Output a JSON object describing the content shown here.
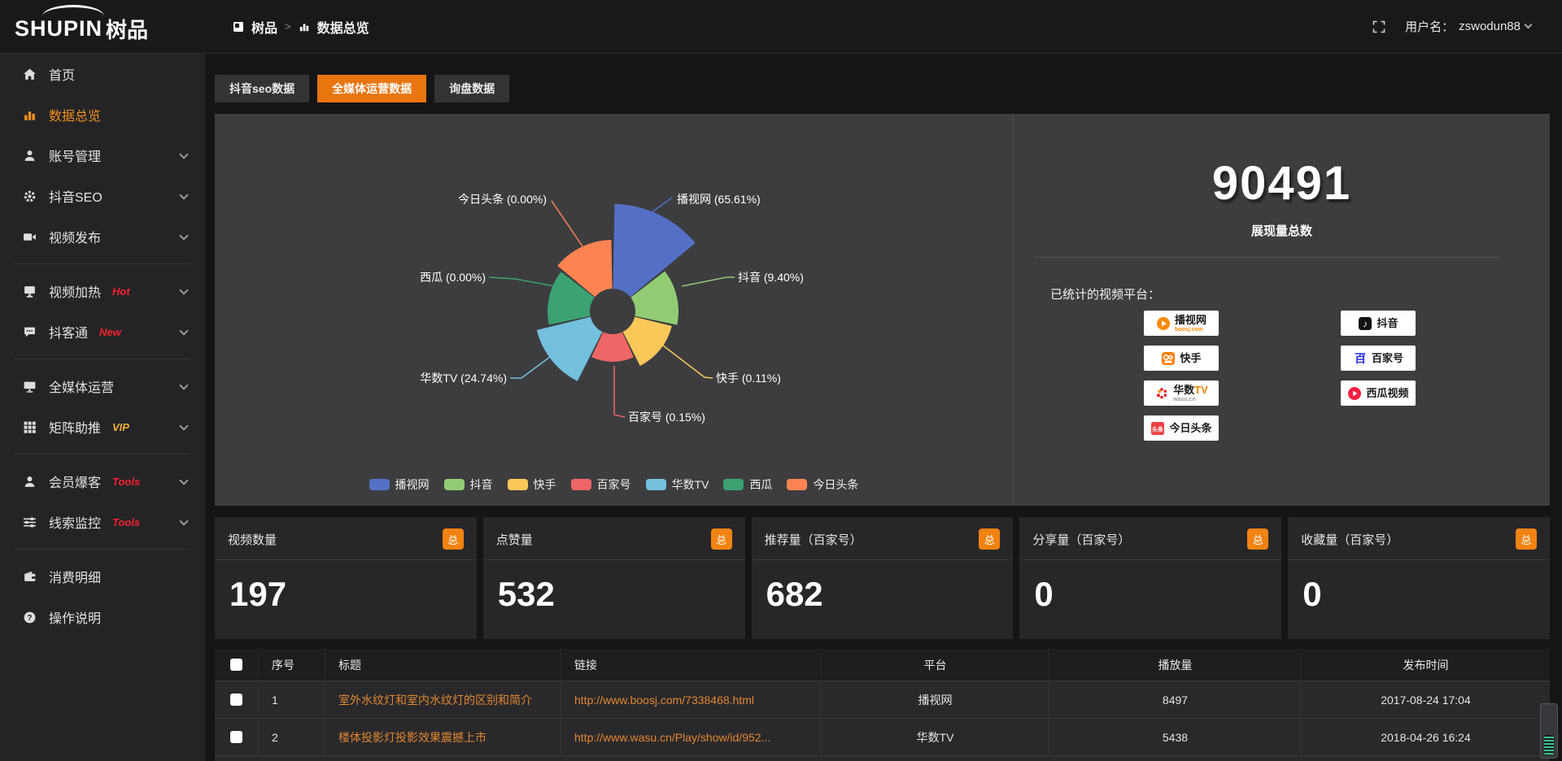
{
  "topbar": {
    "logo_text": "SHUPIN",
    "logo_suffix": "树品",
    "breadcrumb": [
      {
        "label": "树品"
      },
      {
        "label": "数据总览"
      }
    ],
    "username_prefix": "用户名：",
    "username": "zswodun88"
  },
  "sidebar": {
    "items": [
      {
        "label": "首页",
        "icon": "home",
        "badge": "",
        "badge_color": "",
        "chevron": false,
        "active": false,
        "divider_after": false
      },
      {
        "label": "数据总览",
        "icon": "bars",
        "badge": "",
        "badge_color": "",
        "chevron": false,
        "active": true,
        "divider_after": false
      },
      {
        "label": "账号管理",
        "icon": "user",
        "badge": "",
        "badge_color": "",
        "chevron": true,
        "active": false,
        "divider_after": false
      },
      {
        "label": "抖音SEO",
        "icon": "gear",
        "badge": "",
        "badge_color": "",
        "chevron": true,
        "active": false,
        "divider_after": false
      },
      {
        "label": "视频发布",
        "icon": "video",
        "badge": "",
        "badge_color": "",
        "chevron": true,
        "active": false,
        "divider_after": true
      },
      {
        "label": "视频加热",
        "icon": "screen",
        "badge": "Hot",
        "badge_color": "red",
        "chevron": true,
        "active": false,
        "divider_after": false
      },
      {
        "label": "抖客通",
        "icon": "chat",
        "badge": "New",
        "badge_color": "red",
        "chevron": true,
        "active": false,
        "divider_after": true
      },
      {
        "label": "全媒体运营",
        "icon": "monitor",
        "badge": "",
        "badge_color": "",
        "chevron": true,
        "active": false,
        "divider_after": false
      },
      {
        "label": "矩阵助推",
        "icon": "grid",
        "badge": "VIP",
        "badge_color": "gold",
        "chevron": true,
        "active": false,
        "divider_after": true
      },
      {
        "label": "会员爆客",
        "icon": "person",
        "badge": "Tools",
        "badge_color": "red",
        "chevron": true,
        "active": false,
        "divider_after": false
      },
      {
        "label": "线索监控",
        "icon": "sliders",
        "badge": "Tools",
        "badge_color": "red",
        "chevron": true,
        "active": false,
        "divider_after": true
      },
      {
        "label": "消费明细",
        "icon": "wallet",
        "badge": "",
        "badge_color": "",
        "chevron": false,
        "active": false,
        "divider_after": false
      },
      {
        "label": "操作说明",
        "icon": "question",
        "badge": "",
        "badge_color": "",
        "chevron": false,
        "active": false,
        "divider_after": false
      }
    ]
  },
  "tabs": [
    {
      "label": "抖音seo数据",
      "active": false
    },
    {
      "label": "全媒体运营数据",
      "active": true
    },
    {
      "label": "询盘数据",
      "active": false
    }
  ],
  "chart_data": {
    "type": "pie",
    "variant": "nightingale-rose",
    "legend_position": "bottom",
    "label_format": "{name} ({percent}%)",
    "inner_radius": 28,
    "series": [
      {
        "name": "播视网",
        "percent": "65.61",
        "color": "#5470c6",
        "display_radius": 132
      },
      {
        "name": "抖音",
        "percent": "9.40",
        "color": "#91cc75",
        "display_radius": 81
      },
      {
        "name": "快手",
        "percent": "0.11",
        "color": "#fac858",
        "display_radius": 75
      },
      {
        "name": "百家号",
        "percent": "0.15",
        "color": "#ee6666",
        "display_radius": 62
      },
      {
        "name": "华数TV",
        "percent": "24.74",
        "color": "#73c0de",
        "display_radius": 96
      },
      {
        "name": "西瓜",
        "percent": "0.00",
        "color": "#3ba272",
        "display_radius": 80
      },
      {
        "name": "今日头条",
        "percent": "0.00",
        "color": "#fc8452",
        "display_radius": 88
      }
    ]
  },
  "summary": {
    "total_value": "90491",
    "total_label": "展现量总数",
    "platforms_label": "已统计的视频平台：",
    "platforms": [
      {
        "id": "boosj",
        "name": "播视网",
        "sub": "boosj.com",
        "sub_color": "#ff8a00"
      },
      {
        "id": "douyin",
        "name": "抖音",
        "sub": "",
        "sub_color": ""
      },
      {
        "id": "kuaishou",
        "name": "快手",
        "sub": "",
        "sub_color": ""
      },
      {
        "id": "baijiahao",
        "name": "百家号",
        "sub": "",
        "sub_color": ""
      },
      {
        "id": "wasu",
        "name": "华数",
        "name_accent": "TV",
        "sub": "wasu.cn",
        "sub_color": "#999999"
      },
      {
        "id": "xigua",
        "name": "西瓜视频",
        "sub": "",
        "sub_color": ""
      },
      {
        "id": "toutiao",
        "name": "今日头条",
        "sub": "",
        "sub_color": ""
      }
    ]
  },
  "stat_cards": [
    {
      "label": "视频数量",
      "badge": "总",
      "value": "197"
    },
    {
      "label": "点赞量",
      "badge": "总",
      "value": "532"
    },
    {
      "label": "推荐量（百家号）",
      "badge": "总",
      "value": "682"
    },
    {
      "label": "分享量（百家号）",
      "badge": "总",
      "value": "0"
    },
    {
      "label": "收藏量（百家号）",
      "badge": "总",
      "value": "0"
    }
  ],
  "table": {
    "columns": [
      "序号",
      "标题",
      "链接",
      "平台",
      "播放量",
      "发布时间"
    ],
    "rows": [
      {
        "index": "1",
        "title": "室外水纹灯和室内水纹灯的区别和简介",
        "link": "http://www.boosj.com/7338468.html",
        "platform": "播视网",
        "plays": "8497",
        "time": "2017-08-24 17:04"
      },
      {
        "index": "2",
        "title": "楼体投影灯投影效果震撼上市",
        "link": "http://www.wasu.cn/Play/show/id/952...",
        "platform": "华数TV",
        "plays": "5438",
        "time": "2018-04-26 16:24"
      }
    ]
  },
  "colors": {
    "accent_orange": "#e9750f",
    "badge_orange": "#f28211",
    "link_orange": "#e2862f",
    "hot_red": "#f5222d",
    "vip_gold": "#efb336",
    "active_menu": "#f39019"
  }
}
